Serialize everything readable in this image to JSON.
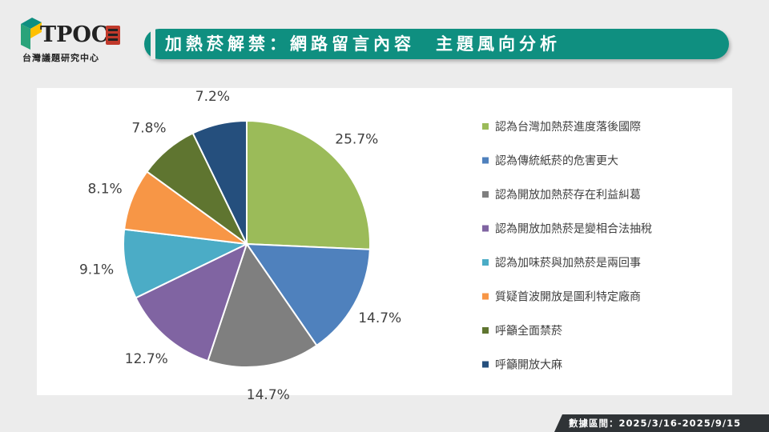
{
  "header": {
    "logo_text": "TPOC",
    "logo_subtitle": "台灣議題研究中心",
    "title": "加熱菸解禁：網路留言內容　主題風向分析"
  },
  "footer": {
    "data_range": "數據區間：2025/3/16-2025/9/15"
  },
  "chart_data": {
    "type": "pie",
    "title": "",
    "start_angle_deg": 0,
    "direction": "clockwise",
    "label_format": "percent_1dp",
    "legend_position": "right",
    "slices": [
      {
        "label": "認為台灣加熱菸進度落後國際",
        "value": 25.7,
        "color": "#9bbb59"
      },
      {
        "label": "認為傳統紙菸的危害更大",
        "value": 14.7,
        "color": "#4f81bd"
      },
      {
        "label": "認為開放加熱菸存在利益糾葛",
        "value": 14.7,
        "color": "#7f7f7f"
      },
      {
        "label": "認為開放加熱菸是變相合法抽稅",
        "value": 12.7,
        "color": "#8064a2"
      },
      {
        "label": "認為加味菸與加熱菸是兩回事",
        "value": 9.1,
        "color": "#4bacc6"
      },
      {
        "label": "質疑首波開放是圖利特定廠商",
        "value": 8.1,
        "color": "#f79646"
      },
      {
        "label": "呼籲全面禁菸",
        "value": 7.8,
        "color": "#5f7530"
      },
      {
        "label": "呼籲開放大麻",
        "value": 7.2,
        "color": "#254f7d"
      }
    ]
  }
}
